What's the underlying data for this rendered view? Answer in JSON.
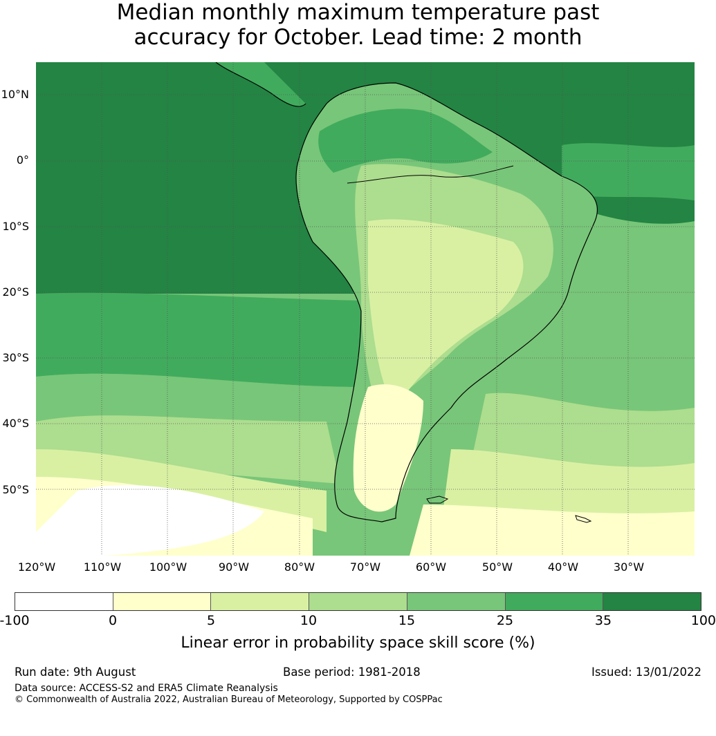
{
  "title": {
    "line1": "Median monthly maximum temperature past",
    "line2": "accuracy for October. Lead time: 2 month"
  },
  "map": {
    "lat_labels": [
      "10°N",
      "0°",
      "10°S",
      "20°S",
      "30°S",
      "40°S",
      "50°S"
    ],
    "lon_labels": [
      "120°W",
      "110°W",
      "100°W",
      "90°W",
      "80°W",
      "70°W",
      "60°W",
      "50°W",
      "40°W",
      "30°W"
    ],
    "palette": {
      "lt0": "#ffffff",
      "0to5": "#ffffcc",
      "5to10": "#d9f0a3",
      "10to15": "#addd8e",
      "15to25": "#78c679",
      "25to35": "#41ab5d",
      "35to100": "#238443",
      "coastline": "#000000",
      "grid": "#555555"
    }
  },
  "colorbar": {
    "ticks": [
      "-100",
      "0",
      "5",
      "10",
      "15",
      "25",
      "35",
      "100"
    ],
    "colors": [
      "#ffffff",
      "#ffffcc",
      "#d9f0a3",
      "#addd8e",
      "#78c679",
      "#41ab5d",
      "#238443"
    ],
    "label": "Linear error in probability space skill score (%)"
  },
  "footer": {
    "run_date": "Run date: 9th August",
    "base_period": "Base period: 1981-2018",
    "issued": "Issued: 13/01/2022",
    "data_source": "Data source: ACCESS-S2 and ERA5 Climate Reanalysis",
    "copyright": "© Commonwealth of Australia 2022, Australian Bureau of Meteorology, Supported by COSPPac"
  }
}
